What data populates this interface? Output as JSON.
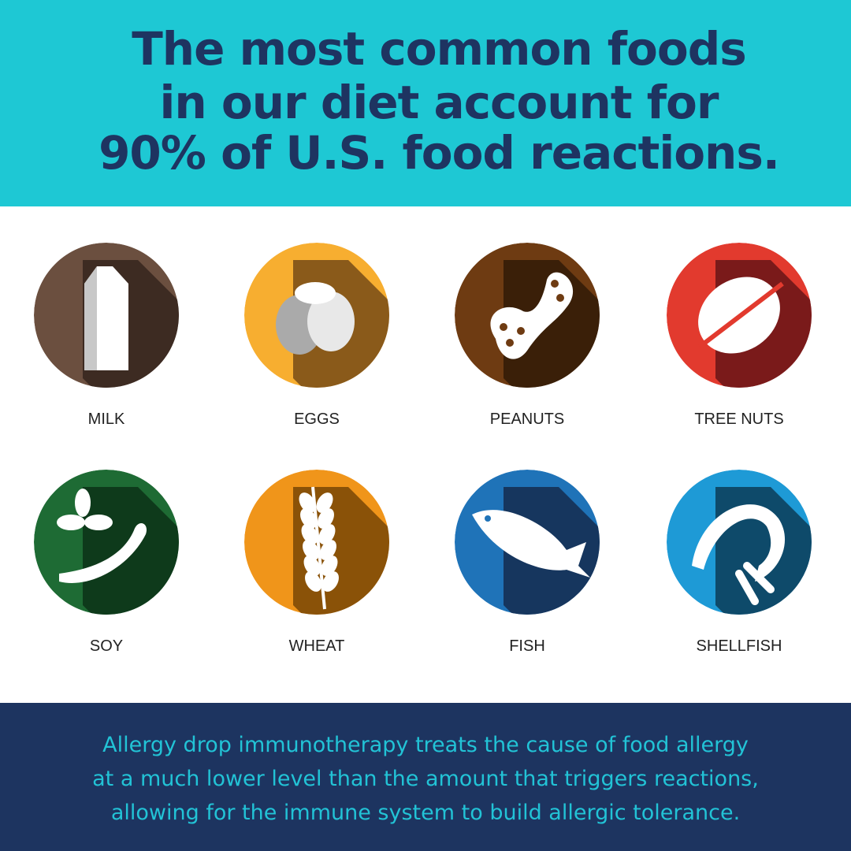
{
  "header": {
    "title_lines": [
      "The most common foods",
      "in our diet account for",
      "90% of U.S. food reactions."
    ]
  },
  "items": [
    {
      "label": "MILK"
    },
    {
      "label": "EGGS"
    },
    {
      "label": "PEANUTS"
    },
    {
      "label": "TREE NUTS"
    },
    {
      "label": "SOY"
    },
    {
      "label": "WHEAT"
    },
    {
      "label": "FISH"
    },
    {
      "label": "SHELLFISH"
    }
  ],
  "footer": {
    "lines": [
      "Allergy drop immunotherapy treats the cause of food allergy",
      "at a much lower level than the amount that triggers reactions,",
      "allowing for the immune system to build allergic tolerance."
    ]
  }
}
